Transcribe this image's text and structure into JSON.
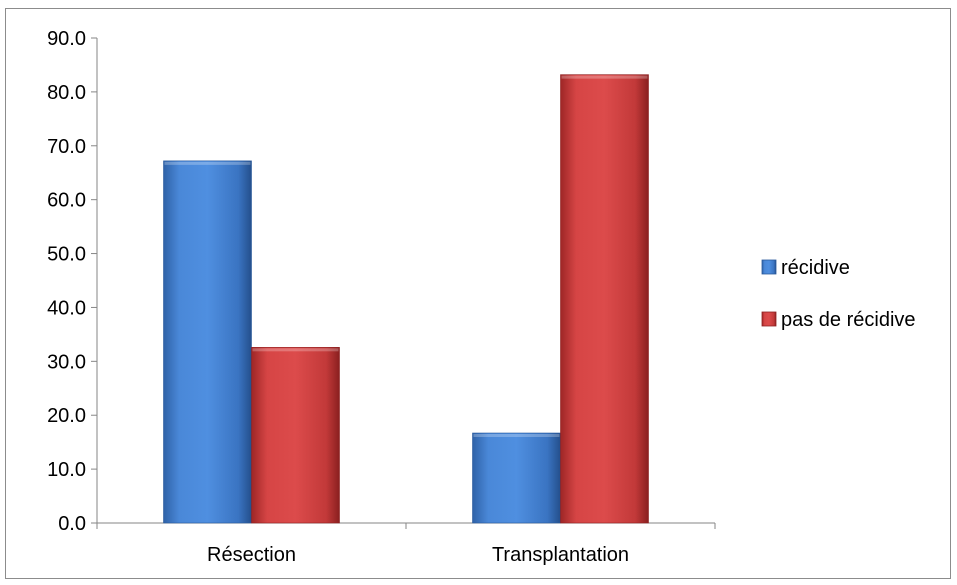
{
  "chart_data": {
    "type": "bar",
    "title": "",
    "xlabel": "",
    "ylabel": "",
    "categories": [
      "Résection",
      "Transplantation"
    ],
    "series": [
      {
        "name": "récidive",
        "values": [
          67.2,
          16.7
        ],
        "color": "#3f7ccc"
      },
      {
        "name": "pas de récidive",
        "values": [
          32.6,
          83.2
        ],
        "color": "#c83a3a"
      }
    ],
    "ylim": [
      0,
      90
    ],
    "yticks": [
      "0.0",
      "10.0",
      "20.0",
      "30.0",
      "40.0",
      "50.0",
      "60.0",
      "70.0",
      "80.0",
      "90.0"
    ],
    "grid": false,
    "legend_position": "right"
  }
}
